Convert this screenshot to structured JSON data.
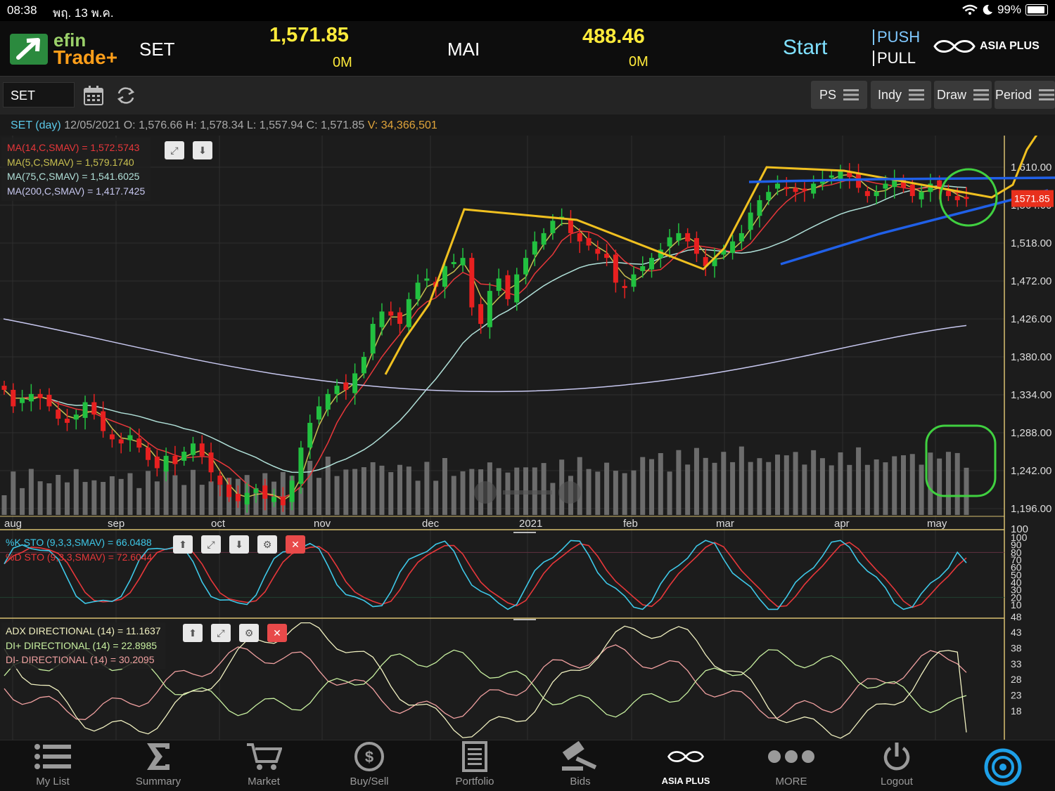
{
  "status_bar": {
    "time": "08:38",
    "date": "พฤ. 13 พ.ค.",
    "battery": "99%"
  },
  "header": {
    "logo_line1": "efin",
    "logo_line2": "Trade+",
    "set_label": "SET",
    "set_value": "1,571.85",
    "set_volume": "0M",
    "mai_label": "MAI",
    "mai_value": "488.46",
    "mai_volume": "0M",
    "start_label": "Start",
    "push_label": "PUSH",
    "pull_label": "PULL",
    "brand": "ASIA PLUS"
  },
  "toolbar": {
    "symbol": "SET",
    "ps": "PS",
    "indy": "Indy",
    "draw": "Draw",
    "period": "Period"
  },
  "info": {
    "symbol_period": "SET (day)",
    "date": "12/05/2021",
    "o_label": "O:",
    "o": "1,576.66",
    "h_label": "H:",
    "h": "1,578.34",
    "l_label": "L:",
    "l": "1,557.94",
    "c_label": "C:",
    "c": "1,571.85",
    "v_label": "V:",
    "v": "34,366,501"
  },
  "ma_legend": [
    {
      "text": "MA(14,C,SMAV) = 1,572.5743",
      "color": "#e8373a"
    },
    {
      "text": "MA(5,C,SMAV) = 1,579.1740",
      "color": "#c8c050"
    },
    {
      "text": "MA(75,C,SMAV) = 1,541.6025",
      "color": "#b0e0d8"
    },
    {
      "text": "MA(200,C,SMAV) = 1,417.7425",
      "color": "#c8c8f0"
    }
  ],
  "sto_legend": [
    {
      "text": "%K STO (9,3,3,SMAV) = 66.0488",
      "color": "#3ec8e8"
    },
    {
      "text": "%D STO (9,3,3,SMAV) = 72.6044",
      "color": "#e8373a"
    }
  ],
  "adx_legend": [
    {
      "text": "ADX DIRECTIONAL (14) = 11.1637",
      "color": "#f0f0c0"
    },
    {
      "text": "DI+ DIRECTIONAL (14) = 22.8985",
      "color": "#c8f0a0"
    },
    {
      "text": "DI- DIRECTIONAL (14) = 30.2095",
      "color": "#f0a0a0"
    }
  ],
  "chart_data": {
    "type": "candlestick",
    "symbol": "SET",
    "last_price_label": "1571.85",
    "price_axis": [
      1610,
      1564,
      1518,
      1472,
      1426,
      1380,
      1334,
      1288,
      1242,
      1196
    ],
    "price_axis_labels": [
      "1,610.00",
      "1,564.00",
      "1,518.00",
      "1,472.00",
      "1,426.00",
      "1,380.00",
      "1,334.00",
      "1,288.00",
      "1,242.00",
      "1,196.00"
    ],
    "x_axis_labels": [
      "aug",
      "sep",
      "oct",
      "nov",
      "dec",
      "2021",
      "feb",
      "mar",
      "apr",
      "may"
    ],
    "price_path": [
      1340,
      1320,
      1330,
      1335,
      1330,
      1320,
      1305,
      1300,
      1310,
      1325,
      1310,
      1290,
      1280,
      1275,
      1285,
      1270,
      1255,
      1245,
      1260,
      1250,
      1265,
      1275,
      1260,
      1240,
      1225,
      1210,
      1205,
      1215,
      1220,
      1208,
      1210,
      1200,
      1230,
      1270,
      1300,
      1320,
      1335,
      1345,
      1340,
      1360,
      1380,
      1420,
      1435,
      1430,
      1420,
      1450,
      1470,
      1475,
      1465,
      1490,
      1495,
      1500,
      1440,
      1420,
      1460,
      1475,
      1450,
      1480,
      1500,
      1520,
      1530,
      1545,
      1550,
      1530,
      1520,
      1515,
      1505,
      1500,
      1470,
      1465,
      1480,
      1490,
      1500,
      1510,
      1525,
      1530,
      1520,
      1505,
      1490,
      1500,
      1510,
      1520,
      1530,
      1555,
      1570,
      1580,
      1590,
      1585,
      1580,
      1582,
      1590,
      1595,
      1600,
      1605,
      1598,
      1585,
      1575,
      1580,
      1590,
      1595,
      1585,
      1575,
      1580,
      1590,
      1585,
      1575,
      1570,
      1572
    ],
    "ma_200_endpoints": [
      1426,
      1418
    ],
    "volume_axis_max": 100,
    "sto_axis": [
      100,
      90,
      80,
      70,
      60,
      50,
      40,
      30,
      20,
      10,
      48
    ],
    "adx_axis": [
      43,
      38,
      33,
      28,
      23,
      18
    ],
    "sto_k_last": 66.0488,
    "sto_d_last": 72.6044,
    "adx_last": 11.1637,
    "di_plus_last": 22.8985,
    "di_minus_last": 30.2095
  },
  "bottom_nav": [
    {
      "label": "My List",
      "icon": "list-icon"
    },
    {
      "label": "Summary",
      "icon": "sigma-icon"
    },
    {
      "label": "Market",
      "icon": "cart-icon"
    },
    {
      "label": "Buy/Sell",
      "icon": "dollar-icon"
    },
    {
      "label": "Portfolio",
      "icon": "document-icon"
    },
    {
      "label": "Bids",
      "icon": "gavel-icon"
    },
    {
      "label": "ASIA PLUS",
      "icon": "asiaplus-icon"
    },
    {
      "label": "MORE",
      "icon": "more-icon"
    },
    {
      "label": "Logout",
      "icon": "power-icon"
    }
  ]
}
